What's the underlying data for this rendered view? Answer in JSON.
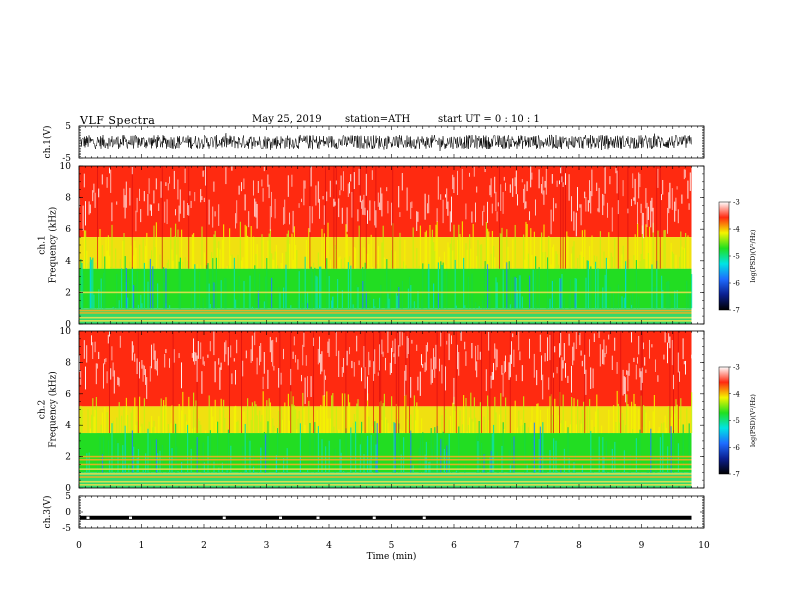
{
  "header": {
    "title": "VLF Spectra",
    "date": "May 25, 2019",
    "station": "station=ATH",
    "start": "start UT = 0 : 10 : 1"
  },
  "colors": {
    "colormap": [
      "#000000",
      "#0b1f8f",
      "#1e6cff",
      "#00e4e4",
      "#20e020",
      "#f4f400",
      "#ff2a10",
      "#ffffff"
    ],
    "waveform": "#000000"
  },
  "chart_data": [
    {
      "type": "line",
      "name": "ch1-waveform",
      "ylabel": "ch.1(V)",
      "ylim": [
        -5,
        5
      ],
      "yticks": [
        "5",
        "-5"
      ],
      "description_values": "broadband noise, approx. +/-2.5 V",
      "xlim": [
        0,
        10
      ]
    },
    {
      "type": "heatmap",
      "name": "ch1-spectrogram",
      "ylabel": "ch.1\nFrequency (kHz)",
      "ylim": [
        0,
        10
      ],
      "yticks": [
        "0",
        "2",
        "4",
        "6",
        "8",
        "10"
      ],
      "xlim": [
        0,
        10
      ],
      "data_end_min": 9.8,
      "colorbar": {
        "label": "log(PSD)(V²/Hz)",
        "range": [
          -7,
          -3
        ],
        "ticks": [
          "-3",
          "-4",
          "-5",
          "-6",
          "-7"
        ]
      },
      "band_boundaries_khz": {
        "red_above": 5.5,
        "yellow_above": 3.5,
        "green_above": 1.0
      }
    },
    {
      "type": "heatmap",
      "name": "ch2-spectrogram",
      "ylabel": "ch.2\nFrequency (kHz)",
      "ylim": [
        0,
        10
      ],
      "yticks": [
        "0",
        "2",
        "4",
        "6",
        "8",
        "10"
      ],
      "xlim": [
        0,
        10
      ],
      "data_end_min": 9.8,
      "colorbar": {
        "label": "log(PSD)(V²/Hz)",
        "range": [
          -7,
          -3
        ],
        "ticks": [
          "-3",
          "-4",
          "-5",
          "-6",
          "-7"
        ]
      },
      "band_boundaries_khz": {
        "red_above": 5.2,
        "yellow_above": 3.5,
        "green_above": 1.0
      }
    },
    {
      "type": "line",
      "name": "ch3-waveform",
      "ylabel": "ch.3(V)",
      "ylim": [
        -5,
        5
      ],
      "yticks": [
        "5",
        "0",
        "-5"
      ],
      "level_v": -1.8,
      "xlim": [
        0,
        10
      ]
    }
  ],
  "xaxis": {
    "label": "Time (min)",
    "ticks": [
      "0",
      "1",
      "2",
      "3",
      "4",
      "5",
      "6",
      "7",
      "8",
      "9",
      "10"
    ]
  }
}
